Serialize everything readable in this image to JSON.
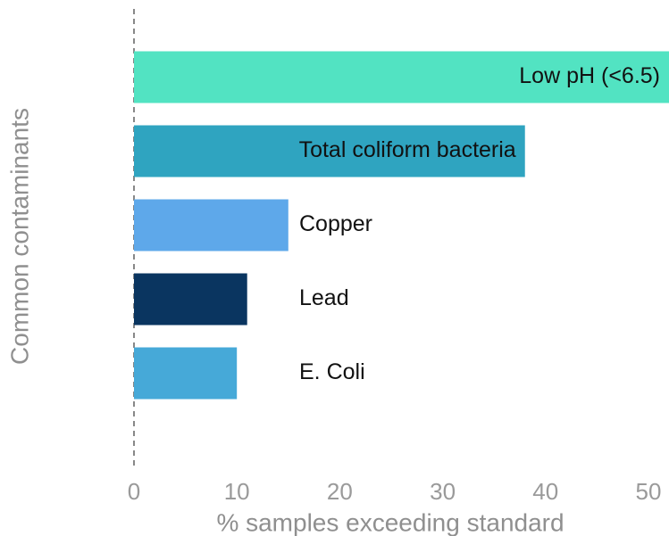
{
  "chart_data": {
    "type": "barh",
    "categories": [
      "Low pH (<6.5)",
      "Total coliform bacteria",
      "Copper",
      "Lead",
      "E. Coli"
    ],
    "values": [
      52,
      38,
      15,
      11,
      10
    ],
    "colors": [
      "#52e3c2",
      "#2fa4c0",
      "#5ea8ea",
      "#0a3560",
      "#46a9d8"
    ],
    "xlabel": "% samples exceeding standard",
    "ylabel": "Common contaminants",
    "xlim": [
      0,
      52
    ],
    "xticks": [
      0,
      10,
      20,
      30,
      40,
      50
    ]
  }
}
